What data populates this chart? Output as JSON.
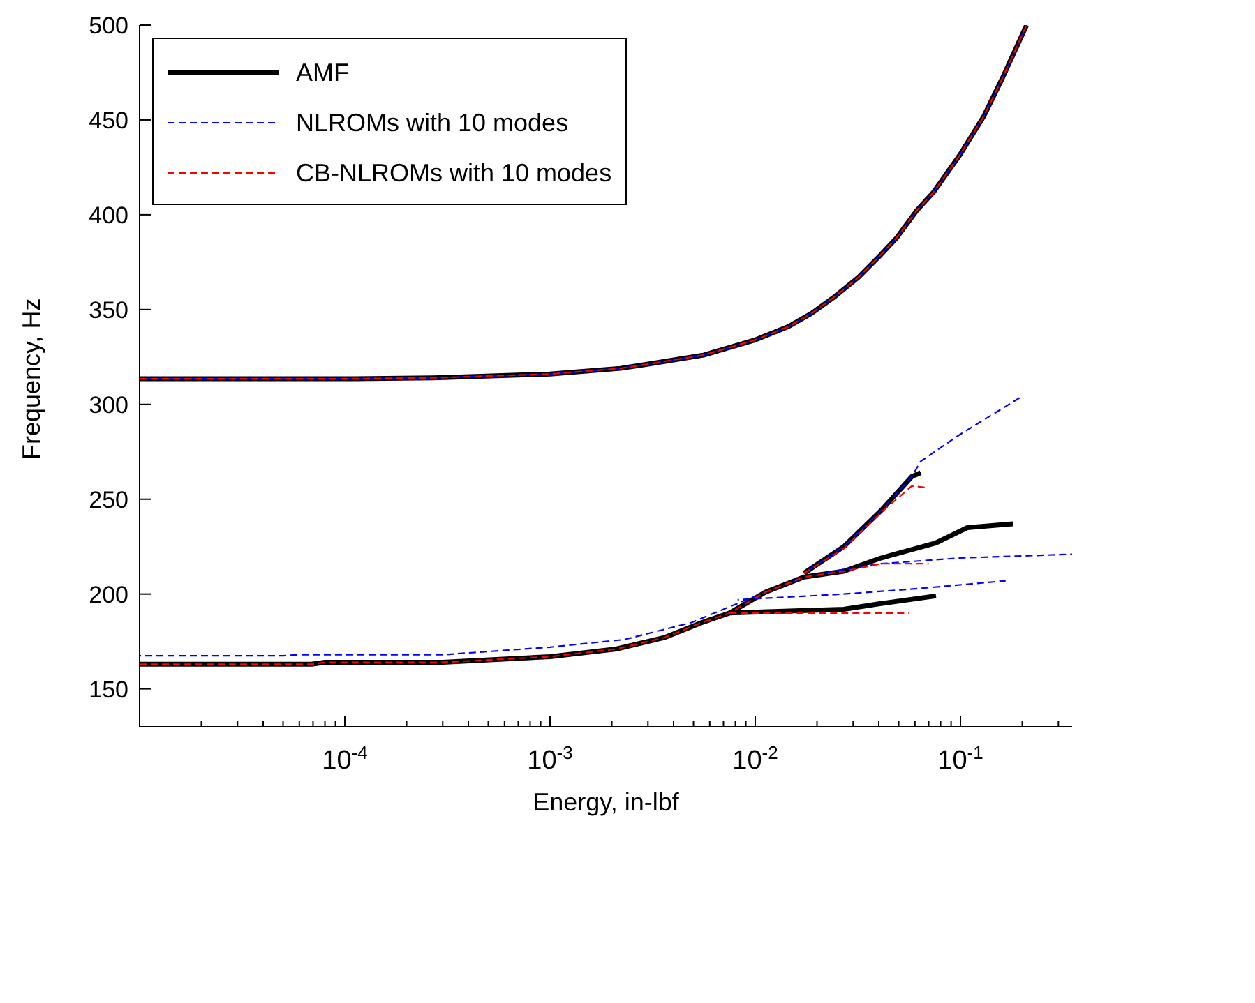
{
  "chart_data": {
    "type": "line",
    "xlabel": "Energy, in-lbf",
    "ylabel": "Frequency, Hz",
    "log": "x",
    "legend": "top left",
    "xlim": [
      1e-05,
      0.35
    ],
    "ylim": [
      130,
      500
    ],
    "xticks": [
      {
        "value": 2e-05,
        "label": null
      },
      {
        "value": 3e-05,
        "label": null
      },
      {
        "value": 4e-05,
        "label": null
      },
      {
        "value": 5e-05,
        "label": null
      },
      {
        "value": 6e-05,
        "label": null
      },
      {
        "value": 7e-05,
        "label": null
      },
      {
        "value": 8e-05,
        "label": null
      },
      {
        "value": 9e-05,
        "label": null
      },
      {
        "value": 0.0001,
        "label": "10$^{-4}$"
      },
      {
        "value": 0.0002,
        "label": null
      },
      {
        "value": 0.0003,
        "label": null
      },
      {
        "value": 0.0004,
        "label": null
      },
      {
        "value": 0.0005,
        "label": null
      },
      {
        "value": 0.0006,
        "label": null
      },
      {
        "value": 0.0007,
        "label": null
      },
      {
        "value": 0.0008,
        "label": null
      },
      {
        "value": 0.0009,
        "label": null
      },
      {
        "value": 0.001,
        "label": "10$^{-3}$"
      },
      {
        "value": 0.002,
        "label": null
      },
      {
        "value": 0.003,
        "label": null
      },
      {
        "value": 0.004,
        "label": null
      },
      {
        "value": 0.005,
        "label": null
      },
      {
        "value": 0.006,
        "label": null
      },
      {
        "value": 0.007,
        "label": null
      },
      {
        "value": 0.008,
        "label": null
      },
      {
        "value": 0.009,
        "label": null
      },
      {
        "value": 0.01,
        "label": "10$^{-2}$"
      },
      {
        "value": 0.02,
        "label": null
      },
      {
        "value": 0.03,
        "label": null
      },
      {
        "value": 0.04,
        "label": null
      },
      {
        "value": 0.05,
        "label": null
      },
      {
        "value": 0.06,
        "label": null
      },
      {
        "value": 0.07,
        "label": null
      },
      {
        "value": 0.08,
        "label": null
      },
      {
        "value": 0.09,
        "label": null
      },
      {
        "value": 0.1,
        "label": "10$^{-1}$"
      },
      {
        "value": 0.2,
        "label": null
      },
      {
        "value": 0.3,
        "label": null
      }
    ],
    "yticks": [
      150,
      200,
      250,
      300,
      350,
      400,
      450,
      500
    ],
    "series": [
      {
        "name": "AMF",
        "color": "#000000",
        "line_style": "solid",
        "x": [
          1e-05,
          0.0001,
          0.00027,
          0.001,
          0.0022,
          0.0029,
          0.0056,
          0.01,
          0.0145,
          0.0188,
          0.0245,
          0.0318,
          0.041,
          0.049,
          0.061,
          0.074,
          0.1,
          0.13,
          0.16,
          0.21,
          null,
          1e-05,
          6.9e-05,
          8e-05,
          0.0003,
          0.001,
          0.0021,
          0.0036,
          0.0055,
          0.0075,
          0.0112,
          0.0173,
          0.027,
          0.041,
          0.076,
          0.108,
          0.18,
          null,
          0.0075,
          0.027,
          0.041,
          0.076,
          null,
          0.0173,
          0.027,
          0.041,
          0.058,
          0.064
        ],
        "values": [
          313.5,
          313.5,
          314,
          316,
          319,
          321,
          326,
          334,
          341,
          348,
          357,
          367,
          379,
          388,
          402,
          412,
          432,
          452,
          472,
          500,
          null,
          163,
          163,
          164,
          164,
          167,
          171,
          177,
          185,
          190,
          201,
          209,
          212,
          219,
          227,
          235,
          237,
          null,
          190,
          192,
          195,
          199,
          null,
          211,
          225,
          244,
          262,
          264
        ]
      },
      {
        "name": "NLROMs with 10 modes",
        "color": "#0000ff",
        "line_style": "dashed",
        "x": [
          1e-05,
          0.0001,
          0.00027,
          0.001,
          0.0022,
          0.0029,
          0.0056,
          0.01,
          0.0145,
          0.0188,
          0.0245,
          0.0318,
          0.041,
          0.049,
          0.061,
          0.074,
          0.1,
          0.13,
          0.16,
          0.21,
          null,
          1e-05,
          5e-05,
          6e-05,
          0.0003,
          0.001,
          0.0023,
          0.0049,
          0.0086,
          0.0165,
          0.027,
          0.041,
          0.099,
          0.35,
          null,
          0.0082,
          0.027,
          0.064,
          0.166,
          null,
          0.0173,
          0.027,
          0.041,
          0.058,
          0.064,
          0.099,
          0.14,
          0.198
        ],
        "values": [
          313.5,
          313.5,
          314,
          316,
          319,
          321,
          326,
          334,
          341,
          348,
          357,
          367,
          379,
          388,
          402,
          412,
          432,
          452,
          472,
          500,
          null,
          167.5,
          167.5,
          168,
          168,
          172,
          176,
          185,
          196,
          208,
          213,
          216,
          219,
          221,
          null,
          197,
          200,
          203,
          207,
          null,
          211,
          225,
          244,
          262,
          270,
          284,
          294,
          304
        ]
      },
      {
        "name": "CB-NLROMs with 10 modes",
        "color": "#ff0000",
        "line_style": "dashed",
        "x": [
          1e-05,
          0.0001,
          0.00027,
          0.001,
          0.0022,
          0.0029,
          0.0056,
          0.01,
          0.0145,
          0.0188,
          0.0245,
          0.0318,
          0.041,
          0.049,
          0.061,
          0.074,
          0.1,
          0.13,
          0.16,
          0.21,
          null,
          1e-05,
          6.9e-05,
          8e-05,
          0.0003,
          0.001,
          0.0021,
          0.0036,
          0.0055,
          0.0075,
          0.0112,
          0.0173,
          0.027,
          0.041,
          0.07,
          null,
          0.0075,
          0.027,
          0.056,
          null,
          0.0173,
          0.027,
          0.041,
          0.058,
          0.07
        ],
        "values": [
          313.5,
          313.5,
          314,
          316,
          319,
          321,
          326,
          334,
          341,
          348,
          357,
          367,
          379,
          388,
          402,
          412,
          432,
          452,
          472,
          500,
          null,
          163,
          163,
          164,
          164,
          167,
          171,
          177,
          185,
          190,
          201,
          209,
          212,
          216,
          216,
          null,
          190,
          190,
          190,
          null,
          211,
          224,
          243,
          257,
          256
        ]
      }
    ]
  }
}
